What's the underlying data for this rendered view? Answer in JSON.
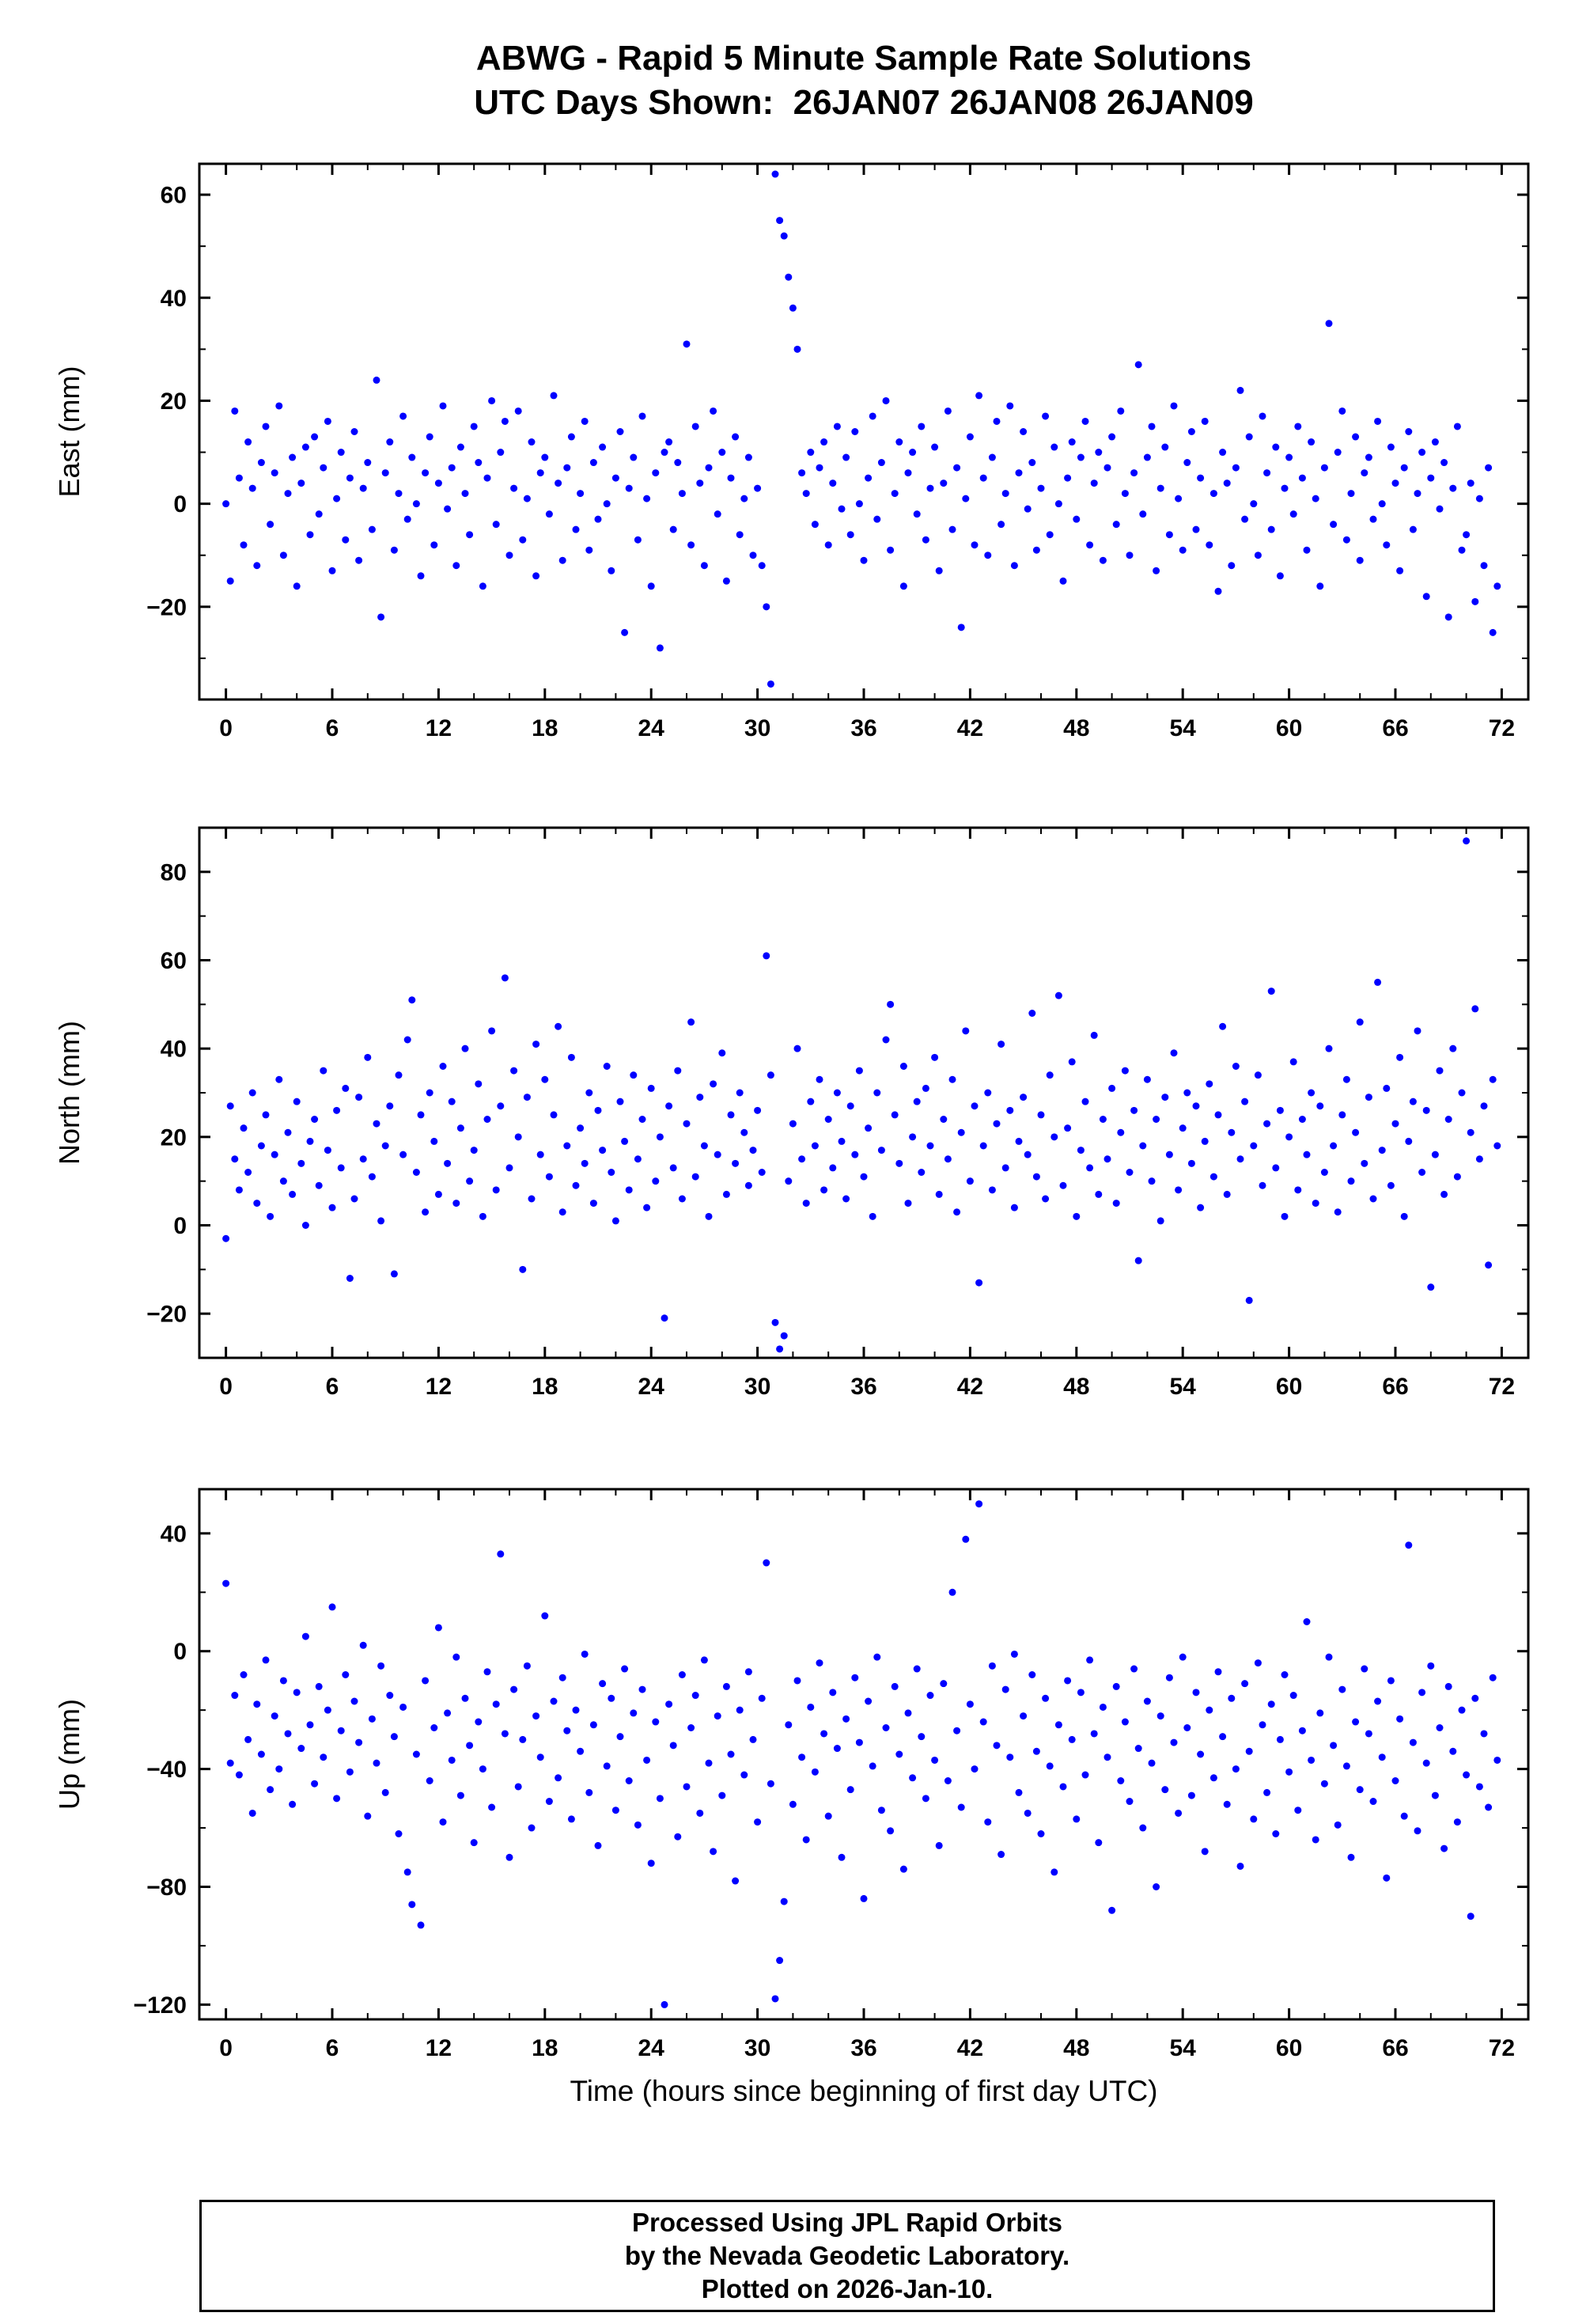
{
  "title": {
    "line1": "ABWG - Rapid 5 Minute Sample Rate Solutions",
    "line2": "UTC Days Shown:  26JAN07 26JAN08 26JAN09"
  },
  "footer": {
    "line1": "Processed Using JPL Rapid Orbits",
    "line2": "by the Nevada Geodetic Laboratory.",
    "line3": "Plotted on 2026-Jan-10."
  },
  "chart_data": {
    "type": "scatter",
    "xlabel": "Time (hours since beginning of first day UTC)",
    "x_axis": {
      "lim": [
        -1.5,
        73.5
      ],
      "ticks": [
        0,
        6,
        12,
        18,
        24,
        30,
        36,
        42,
        48,
        54,
        60,
        66,
        72
      ],
      "minor_step": 2
    },
    "marker": {
      "color": "#0000ff",
      "radius": 4.5
    },
    "panels": [
      {
        "name": "east",
        "ylabel": "East (mm)",
        "ylim": [
          -38,
          66
        ],
        "yticks": [
          -20,
          0,
          20,
          40,
          60
        ],
        "y_minor_step": 10,
        "x0": 0,
        "dx": 0.25,
        "y": [
          0,
          -15,
          18,
          5,
          -8,
          12,
          3,
          -12,
          8,
          15,
          -4,
          6,
          19,
          -10,
          2,
          9,
          -16,
          4,
          11,
          -6,
          13,
          -2,
          7,
          16,
          -13,
          1,
          10,
          -7,
          5,
          14,
          -11,
          3,
          8,
          -5,
          24,
          -22,
          6,
          12,
          -9,
          2,
          17,
          -3,
          9,
          0,
          -14,
          6,
          13,
          -8,
          4,
          19,
          -1,
          7,
          -12,
          11,
          2,
          -6,
          15,
          8,
          -16,
          5,
          20,
          -4,
          10,
          16,
          -10,
          3,
          18,
          -7,
          1,
          12,
          -14,
          6,
          9,
          -2,
          21,
          4,
          -11,
          7,
          13,
          -5,
          2,
          16,
          -9,
          8,
          -3,
          11,
          0,
          -13,
          5,
          14,
          -25,
          3,
          9,
          -7,
          17,
          1,
          -16,
          6,
          -28,
          10,
          12,
          -5,
          8,
          2,
          31,
          -8,
          15,
          4,
          -12,
          7,
          18,
          -2,
          10,
          -15,
          5,
          13,
          -6,
          1,
          9,
          -10,
          3,
          -12,
          -20,
          -35,
          64,
          55,
          52,
          44,
          38,
          30,
          6,
          2,
          10,
          -4,
          7,
          12,
          -8,
          4,
          15,
          -1,
          9,
          -6,
          14,
          0,
          -11,
          5,
          17,
          -3,
          8,
          20,
          -9,
          2,
          12,
          -16,
          6,
          10,
          -2,
          15,
          -7,
          3,
          11,
          -13,
          4,
          18,
          -5,
          7,
          -24,
          1,
          13,
          -8,
          21,
          5,
          -10,
          9,
          16,
          -4,
          2,
          19,
          -12,
          6,
          14,
          -1,
          8,
          -9,
          3,
          17,
          -6,
          11,
          0,
          -15,
          5,
          12,
          -3,
          9,
          16,
          -8,
          4,
          10,
          -11,
          7,
          13,
          -4,
          18,
          2,
          -10,
          6,
          27,
          -2,
          9,
          15,
          -13,
          3,
          11,
          -6,
          19,
          1,
          -9,
          8,
          14,
          -5,
          5,
          16,
          -8,
          2,
          -17,
          10,
          4,
          -12,
          7,
          22,
          -3,
          13,
          0,
          -10,
          17,
          6,
          -5,
          11,
          -14,
          3,
          9,
          -2,
          15,
          5,
          -9,
          12,
          1,
          -16,
          7,
          35,
          -4,
          10,
          18,
          -7,
          2,
          13,
          -11,
          6,
          9,
          -3,
          16,
          0,
          -8,
          11,
          4,
          -13,
          7,
          14,
          -5,
          2,
          10,
          -18,
          5,
          12,
          -1,
          8,
          -22,
          3,
          15,
          -9,
          -6,
          4,
          -19,
          1,
          -12,
          7,
          -25,
          -16
        ]
      },
      {
        "name": "north",
        "ylabel": "North (mm)",
        "ylim": [
          -30,
          90
        ],
        "yticks": [
          -20,
          0,
          20,
          40,
          60,
          80
        ],
        "y_minor_step": 10,
        "x0": 0,
        "dx": 0.25,
        "y": [
          -3,
          27,
          15,
          8,
          22,
          12,
          30,
          5,
          18,
          25,
          2,
          16,
          33,
          10,
          21,
          7,
          28,
          14,
          0,
          19,
          24,
          9,
          35,
          17,
          4,
          26,
          13,
          31,
          -12,
          6,
          29,
          15,
          38,
          11,
          23,
          1,
          18,
          27,
          -11,
          34,
          16,
          42,
          51,
          12,
          25,
          3,
          30,
          19,
          7,
          36,
          14,
          28,
          5,
          22,
          40,
          10,
          17,
          32,
          2,
          24,
          44,
          8,
          27,
          56,
          13,
          35,
          20,
          -10,
          29,
          6,
          41,
          16,
          33,
          11,
          25,
          45,
          3,
          18,
          38,
          9,
          22,
          14,
          30,
          5,
          26,
          17,
          36,
          12,
          1,
          28,
          19,
          8,
          34,
          15,
          24,
          4,
          31,
          10,
          20,
          -21,
          27,
          13,
          35,
          6,
          23,
          46,
          11,
          29,
          18,
          2,
          32,
          16,
          39,
          7,
          25,
          14,
          30,
          21,
          9,
          17,
          26,
          12,
          61,
          34,
          -22,
          -28,
          -25,
          10,
          23,
          40,
          15,
          5,
          28,
          18,
          33,
          8,
          24,
          13,
          30,
          19,
          6,
          27,
          16,
          35,
          11,
          22,
          2,
          30,
          17,
          42,
          50,
          25,
          14,
          36,
          5,
          20,
          28,
          12,
          31,
          18,
          38,
          7,
          24,
          15,
          33,
          3,
          21,
          44,
          10,
          27,
          -13,
          18,
          30,
          8,
          23,
          41,
          13,
          26,
          4,
          19,
          29,
          16,
          48,
          11,
          25,
          6,
          34,
          20,
          52,
          9,
          22,
          37,
          2,
          17,
          28,
          13,
          43,
          7,
          24,
          15,
          31,
          5,
          21,
          35,
          12,
          26,
          -8,
          18,
          33,
          10,
          24,
          1,
          29,
          16,
          39,
          8,
          22,
          30,
          14,
          27,
          4,
          19,
          32,
          11,
          25,
          45,
          7,
          21,
          36,
          15,
          28,
          -17,
          18,
          34,
          9,
          23,
          53,
          13,
          26,
          2,
          20,
          37,
          8,
          24,
          16,
          30,
          5,
          27,
          12,
          40,
          18,
          3,
          25,
          33,
          10,
          21,
          46,
          14,
          29,
          6,
          55,
          17,
          31,
          9,
          23,
          38,
          2,
          19,
          28,
          44,
          12,
          26,
          -14,
          16,
          35,
          7,
          24,
          40,
          11,
          30,
          87,
          21,
          49,
          15,
          27,
          -9,
          33,
          18
        ]
      },
      {
        "name": "up",
        "ylabel": "Up (mm)",
        "ylim": [
          -125,
          55
        ],
        "yticks": [
          -120,
          -80,
          -40,
          0,
          40
        ],
        "y_minor_step": 20,
        "x0": 0,
        "dx": 0.25,
        "y": [
          23,
          -38,
          -15,
          -42,
          -8,
          -30,
          -55,
          -18,
          -35,
          -3,
          -47,
          -22,
          -40,
          -10,
          -28,
          -52,
          -14,
          -33,
          5,
          -25,
          -45,
          -12,
          -36,
          -20,
          15,
          -50,
          -27,
          -8,
          -41,
          -17,
          -31,
          2,
          -56,
          -23,
          -38,
          -5,
          -48,
          -15,
          -29,
          -62,
          -19,
          -75,
          -86,
          -35,
          -93,
          -10,
          -44,
          -26,
          8,
          -58,
          -21,
          -37,
          -2,
          -49,
          -16,
          -32,
          -65,
          -24,
          -40,
          -7,
          -53,
          -18,
          33,
          -28,
          -70,
          -13,
          -46,
          -30,
          -5,
          -60,
          -22,
          -36,
          12,
          -51,
          -17,
          -43,
          -9,
          -27,
          -57,
          -20,
          -34,
          -1,
          -48,
          -25,
          -66,
          -11,
          -39,
          -16,
          -54,
          -29,
          -6,
          -44,
          -21,
          -59,
          -13,
          -37,
          -72,
          -24,
          -50,
          -120,
          -18,
          -32,
          -63,
          -8,
          -46,
          -26,
          -15,
          -55,
          -3,
          -38,
          -68,
          -22,
          -49,
          -12,
          -35,
          -78,
          -20,
          -42,
          -7,
          -30,
          -58,
          -16,
          30,
          -45,
          -118,
          -105,
          -85,
          -25,
          -52,
          -10,
          -36,
          -64,
          -19,
          -41,
          -4,
          -28,
          -56,
          -14,
          -33,
          -70,
          -23,
          -47,
          -9,
          -31,
          -84,
          -17,
          -39,
          -2,
          -54,
          -26,
          -61,
          -12,
          -35,
          -74,
          -21,
          -43,
          -6,
          -29,
          -50,
          -15,
          -37,
          -66,
          -11,
          -44,
          20,
          -27,
          -53,
          38,
          -18,
          -40,
          50,
          -24,
          -58,
          -5,
          -32,
          -69,
          -13,
          -36,
          -1,
          -48,
          -22,
          -55,
          -8,
          -34,
          -62,
          -16,
          -39,
          -75,
          -25,
          -46,
          -10,
          -30,
          -57,
          -14,
          -42,
          -3,
          -28,
          -65,
          -19,
          -36,
          -88,
          -12,
          -44,
          -24,
          -51,
          -6,
          -33,
          -60,
          -17,
          -38,
          -80,
          -22,
          -47,
          -9,
          -31,
          -55,
          -2,
          -26,
          -49,
          -14,
          -35,
          -68,
          -20,
          -43,
          -7,
          -29,
          -52,
          -16,
          -40,
          -73,
          -11,
          -34,
          -57,
          -4,
          -25,
          -48,
          -18,
          -62,
          -30,
          -8,
          -41,
          -15,
          -54,
          -27,
          10,
          -37,
          -64,
          -21,
          -45,
          -2,
          -32,
          -59,
          -13,
          -39,
          -70,
          -24,
          -47,
          -6,
          -28,
          -51,
          -17,
          -36,
          -77,
          -10,
          -44,
          -23,
          -56,
          36,
          -31,
          -61,
          -14,
          -38,
          -5,
          -49,
          -26,
          -67,
          -12,
          -34,
          -58,
          -20,
          -42,
          -90,
          -16,
          -46,
          -28,
          -53,
          -9,
          -37
        ]
      }
    ]
  }
}
